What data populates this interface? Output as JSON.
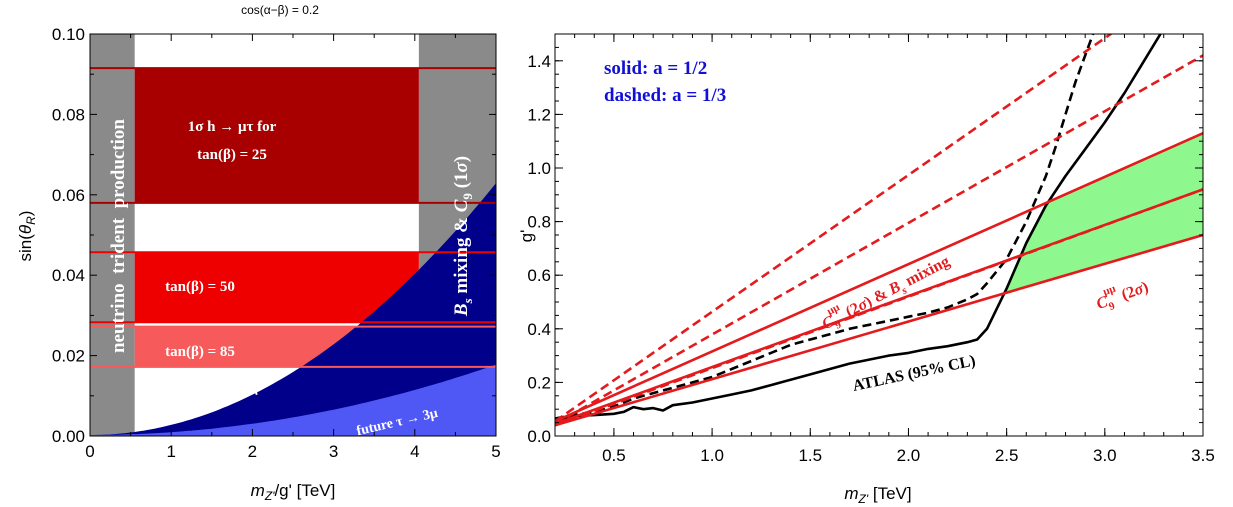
{
  "chart_data": [
    {
      "type": "area",
      "title": "cos(α−β) = 0.2",
      "xlabel": "m_{Z'}/g' [TeV]",
      "ylabel": "sin(θ_R)",
      "xlim": [
        0,
        5
      ],
      "ylim": [
        0,
        0.1
      ],
      "xticks": [
        "0",
        "1",
        "2",
        "3",
        "4",
        "5"
      ],
      "yticks": [
        "0.00",
        "0.02",
        "0.04",
        "0.06",
        "0.08",
        "0.10"
      ],
      "grid": false,
      "vertical_bands": [
        {
          "label": "neutrino  trident  production",
          "x": [
            0,
            0.55
          ],
          "color": "#8a8a8a"
        },
        {
          "label": "B_s mixing & C_9 (1σ)",
          "x": [
            4.05,
            5
          ],
          "color": "#8a8a8a"
        }
      ],
      "horizontal_bands": [
        {
          "label_line1": "1σ h → μτ for",
          "label_line2": "tan(β) = 25",
          "y": [
            0.058,
            0.0915
          ],
          "color": "#a80000"
        },
        {
          "label": "tan(β) = 50",
          "y": [
            0.0283,
            0.0457
          ],
          "color": "#ee0000"
        },
        {
          "label": "tan(β) = 85",
          "y": [
            0.0172,
            0.0272
          ],
          "color": "#f75a5a"
        }
      ],
      "curves": [
        {
          "name": "τ → 3μ",
          "shape": "power",
          "coef": 0.0025,
          "exponent": 2,
          "color": "#00008b"
        },
        {
          "name": "future τ → 3μ",
          "shape": "power",
          "coef": 0.0007,
          "exponent": 2,
          "color": "#4f57f5"
        }
      ]
    },
    {
      "type": "line",
      "xlabel": "m_{Z'} [TeV]",
      "ylabel": "g'",
      "xlim": [
        0.2,
        3.5
      ],
      "ylim": [
        0,
        1.5
      ],
      "xticks": [
        "0.5",
        "1.0",
        "1.5",
        "2.0",
        "2.5",
        "3.0",
        "3.5"
      ],
      "yticks": [
        "0.0",
        "0.2",
        "0.4",
        "0.6",
        "0.8",
        "1.0",
        "1.2",
        "1.4"
      ],
      "grid": false,
      "legend_notes": [
        "solid: a = 1/2",
        "dashed: a = 1/3"
      ],
      "series": [
        {
          "name": "ATLAS (95% CL)",
          "style": "solid",
          "color": "#000000",
          "x": [
            0.2,
            0.3,
            0.4,
            0.5,
            0.55,
            0.6,
            0.65,
            0.7,
            0.75,
            0.8,
            0.9,
            1.0,
            1.1,
            1.2,
            1.3,
            1.4,
            1.5,
            1.6,
            1.7,
            1.8,
            1.9,
            2.0,
            2.1,
            2.2,
            2.3,
            2.35,
            2.4,
            2.5,
            2.6,
            2.7,
            2.8,
            2.9,
            3.0,
            3.1,
            3.2,
            3.3
          ],
          "y": [
            0.06,
            0.075,
            0.078,
            0.083,
            0.09,
            0.108,
            0.1,
            0.104,
            0.095,
            0.115,
            0.125,
            0.14,
            0.155,
            0.17,
            0.19,
            0.21,
            0.23,
            0.25,
            0.27,
            0.285,
            0.3,
            0.31,
            0.325,
            0.335,
            0.35,
            0.36,
            0.4,
            0.55,
            0.72,
            0.86,
            0.97,
            1.07,
            1.17,
            1.28,
            1.4,
            1.52
          ]
        },
        {
          "name": "",
          "style": "dashed",
          "color": "#000000",
          "x": [
            0.2,
            0.3,
            0.4,
            0.5,
            0.6,
            0.7,
            0.8,
            0.9,
            1.0,
            1.1,
            1.2,
            1.3,
            1.4,
            1.5,
            1.6,
            1.7,
            1.8,
            1.9,
            2.0,
            2.1,
            2.2,
            2.3,
            2.35,
            2.4,
            2.5,
            2.6,
            2.7,
            2.75,
            2.8,
            2.85,
            2.9,
            2.95
          ],
          "y": [
            0.065,
            0.08,
            0.09,
            0.11,
            0.14,
            0.16,
            0.18,
            0.2,
            0.22,
            0.25,
            0.28,
            0.31,
            0.34,
            0.36,
            0.38,
            0.4,
            0.415,
            0.43,
            0.445,
            0.46,
            0.48,
            0.51,
            0.53,
            0.57,
            0.66,
            0.8,
            0.97,
            1.08,
            1.2,
            1.32,
            1.42,
            1.52
          ]
        },
        {
          "name": "C_9^{μμ} (2σ) & B_s mixing",
          "style": "solid",
          "color": "#e41a1c",
          "x": [
            0.2,
            3.5
          ],
          "y": [
            0.055,
            1.13
          ]
        },
        {
          "name": "C_9^{μμ} (2σ)",
          "style": "solid",
          "color": "#e41a1c",
          "x": [
            0.2,
            3.5
          ],
          "y": [
            0.04,
            0.75
          ]
        },
        {
          "name": "",
          "style": "solid",
          "color": "#e41a1c",
          "x": [
            0.2,
            3.5
          ],
          "y": [
            0.045,
            0.92
          ]
        },
        {
          "name": "",
          "style": "dashed",
          "color": "#e41a1c",
          "x": [
            0.2,
            3.5
          ],
          "y": [
            0.055,
            1.74
          ]
        },
        {
          "name": "",
          "style": "dashed",
          "color": "#e41a1c",
          "x": [
            0.2,
            3.5
          ],
          "y": [
            0.045,
            1.42
          ]
        },
        {
          "name": "",
          "style": "dashed",
          "color": "#e41a1c",
          "x": [
            0.2,
            3.5
          ],
          "y": [
            0.04,
            0.92
          ]
        }
      ],
      "allowed_region": {
        "color": "#8ef78e",
        "bounds": "between upper and lower C_9 lines, right of ATLAS curve"
      }
    }
  ]
}
